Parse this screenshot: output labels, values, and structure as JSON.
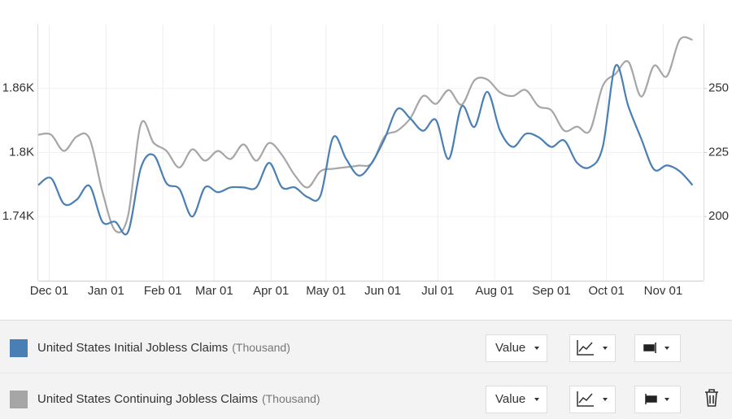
{
  "chart_data": {
    "type": "line",
    "x": [
      -6,
      1,
      8,
      15,
      22,
      29,
      36,
      43,
      50,
      57,
      64,
      71,
      78,
      85,
      92,
      99,
      106,
      113,
      120,
      127,
      134,
      141,
      148,
      155,
      162,
      169,
      176,
      183,
      190,
      197,
      204,
      211,
      218,
      225,
      232,
      239,
      246,
      253,
      260,
      267,
      274,
      281,
      288,
      295,
      302,
      309,
      316,
      323,
      330,
      337,
      344,
      351
    ],
    "xlim": [
      -6,
      357
    ],
    "xticks": [
      {
        "value": 0,
        "label": "Dec 01"
      },
      {
        "value": 31,
        "label": "Jan 01"
      },
      {
        "value": 62,
        "label": "Feb 01"
      },
      {
        "value": 90,
        "label": "Mar 01"
      },
      {
        "value": 121,
        "label": "Apr 01"
      },
      {
        "value": 151,
        "label": "May 01"
      },
      {
        "value": 182,
        "label": "Jun 01"
      },
      {
        "value": 212,
        "label": "Jul 01"
      },
      {
        "value": 243,
        "label": "Aug 01"
      },
      {
        "value": 274,
        "label": "Sep 01"
      },
      {
        "value": 304,
        "label": "Oct 01"
      },
      {
        "value": 335,
        "label": "Nov 01"
      }
    ],
    "ylim": [
      1680,
      1920
    ],
    "yticks": [
      {
        "value": 1740,
        "label": "1.74K"
      },
      {
        "value": 1800,
        "label": "1.8K"
      },
      {
        "value": 1860,
        "label": "1.86K"
      }
    ],
    "y2lim": [
      175,
      275
    ],
    "y2ticks": [
      200,
      225,
      250
    ],
    "grid": true,
    "series": [
      {
        "name": "United States Initial Jobless Claims",
        "unit": "(Thousand)",
        "display": "Value",
        "color": "#4a7fb5",
        "axis": "y2",
        "values": [
          212.3,
          215,
          205,
          206.6,
          212,
          198,
          198,
          194,
          219,
          224,
          213,
          210.8,
          200,
          211.4,
          209.5,
          211.4,
          211.4,
          211.4,
          221,
          211.4,
          211.4,
          207.6,
          208.2,
          231,
          222.5,
          216,
          221,
          230.4,
          242,
          238.3,
          233.5,
          237.7,
          222.5,
          243,
          235,
          248.7,
          233.5,
          227.2,
          232.3,
          231,
          227.2,
          229.7,
          221,
          219.3,
          227.2,
          258.9,
          243,
          230.4,
          218.4,
          220,
          217.7,
          212.3
        ]
      },
      {
        "name": "United States Continuing Jobless Claims",
        "unit": "(Thousand)",
        "display": "Value",
        "color": "#a6a6a6",
        "values": [
          1816.7,
          1816.7,
          1801.5,
          1815,
          1813,
          1763.5,
          1727,
          1740.8,
          1826.6,
          1809,
          1801.5,
          1786,
          1803,
          1792.4,
          1801.5,
          1794,
          1807.6,
          1792.4,
          1809,
          1797.7,
          1778.7,
          1767.3,
          1782.5,
          1784.8,
          1786.3,
          1787.8,
          1790,
          1815,
          1820.5,
          1832,
          1853,
          1845.6,
          1858.5,
          1844.8,
          1867.6,
          1868.4,
          1856.2,
          1853,
          1858.5,
          1843.3,
          1839.5,
          1820.5,
          1824.3,
          1820.5,
          1862.3,
          1873.7,
          1885,
          1852.4,
          1881.3,
          1871.4,
          1905.6,
          1905.6
        ]
      }
    ]
  }
}
